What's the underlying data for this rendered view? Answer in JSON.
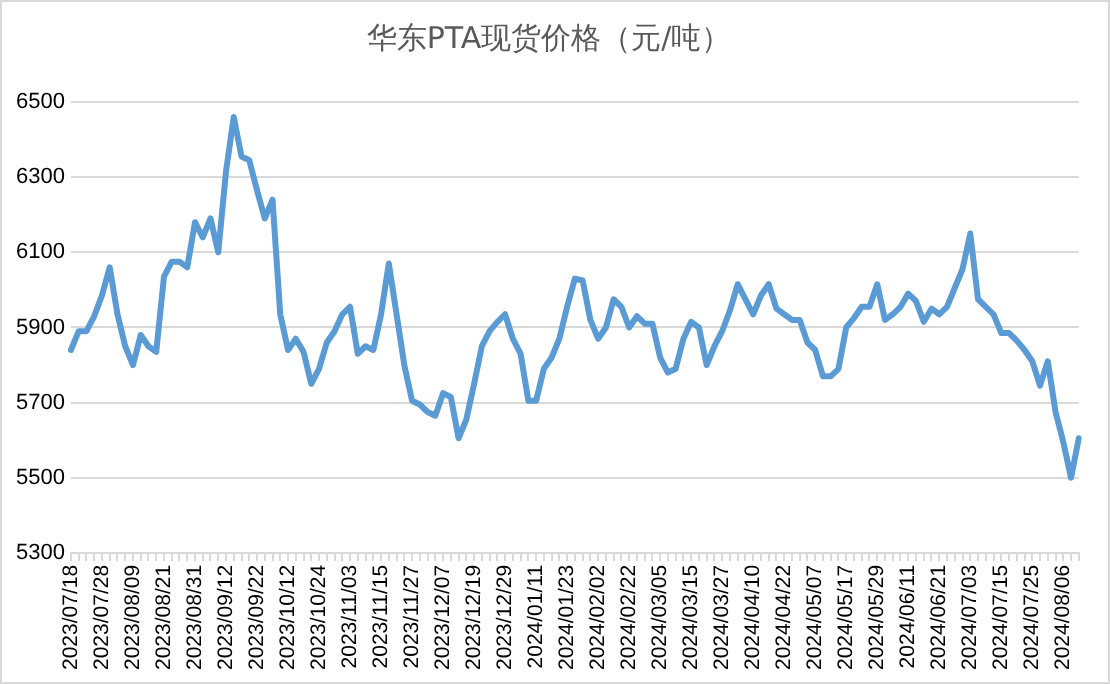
{
  "chart_data": {
    "type": "line",
    "title": "华东PTA现货价格（元/吨）",
    "categories": [
      "2023/07/18",
      null,
      null,
      null,
      "2023/07/28",
      null,
      null,
      null,
      "2023/08/09",
      null,
      null,
      null,
      "2023/08/21",
      null,
      null,
      null,
      "2023/08/31",
      null,
      null,
      null,
      "2023/09/12",
      null,
      null,
      null,
      "2023/09/22",
      null,
      null,
      null,
      "2023/10/12",
      null,
      null,
      null,
      "2023/10/24",
      null,
      null,
      null,
      "2023/11/03",
      null,
      null,
      null,
      "2023/11/15",
      null,
      null,
      null,
      "2023/11/27",
      null,
      null,
      null,
      "2023/12/07",
      null,
      null,
      null,
      "2023/12/19",
      null,
      null,
      null,
      "2023/12/29",
      null,
      null,
      null,
      "2024/01/11",
      null,
      null,
      null,
      "2024/01/23",
      null,
      null,
      null,
      "2024/02/02",
      null,
      null,
      null,
      "2024/02/22",
      null,
      null,
      null,
      "2024/03/05",
      null,
      null,
      null,
      "2024/03/15",
      null,
      null,
      null,
      "2024/03/27",
      null,
      null,
      null,
      "2024/04/10",
      null,
      null,
      null,
      "2024/04/22",
      null,
      null,
      null,
      "2024/05/07",
      null,
      null,
      null,
      "2024/05/17",
      null,
      null,
      null,
      "2024/05/29",
      null,
      null,
      null,
      "2024/06/11",
      null,
      null,
      null,
      "2024/06/21",
      null,
      null,
      null,
      "2024/07/03",
      null,
      null,
      null,
      "2024/07/15",
      null,
      null,
      null,
      "2024/07/25",
      null,
      null,
      null,
      "2024/08/06",
      null,
      null
    ],
    "series": [
      {
        "color": "#5b9bd5",
        "values": [
          5840,
          5890,
          5890,
          5930,
          5985,
          6060,
          5935,
          5850,
          5800,
          5880,
          5850,
          5835,
          6035,
          6075,
          6075,
          6060,
          6180,
          6140,
          6190,
          6100,
          6315,
          6460,
          6355,
          6345,
          6265,
          6190,
          6240,
          5935,
          5840,
          5870,
          5835,
          5750,
          5790,
          5860,
          5890,
          5935,
          5955,
          5830,
          5850,
          5840,
          5935,
          6070,
          5935,
          5800,
          5705,
          5695,
          5675,
          5665,
          5725,
          5715,
          5605,
          5655,
          5750,
          5850,
          5890,
          5915,
          5935,
          5870,
          5830,
          5705,
          5705,
          5790,
          5820,
          5870,
          5955,
          6030,
          6025,
          5920,
          5870,
          5900,
          5975,
          5955,
          5900,
          5930,
          5910,
          5910,
          5820,
          5780,
          5790,
          5870,
          5915,
          5900,
          5800,
          5850,
          5890,
          5945,
          6015,
          5975,
          5935,
          5985,
          6015,
          5950,
          5935,
          5920,
          5920,
          5860,
          5840,
          5770,
          5770,
          5790,
          5900,
          5925,
          5955,
          5955,
          6015,
          5920,
          5935,
          5955,
          5990,
          5970,
          5915,
          5950,
          5935,
          5955,
          6005,
          6055,
          6150,
          5975,
          5955,
          5935,
          5885,
          5885,
          5865,
          5840,
          5810,
          5745,
          5810,
          5675,
          5595,
          5500,
          5605
        ]
      }
    ],
    "ylim": [
      5300,
      6500
    ],
    "yticks": [
      5300,
      5500,
      5700,
      5900,
      6100,
      6300,
      6500
    ],
    "grid": "y",
    "legend": false,
    "marker": "none",
    "line_style": "solid"
  }
}
